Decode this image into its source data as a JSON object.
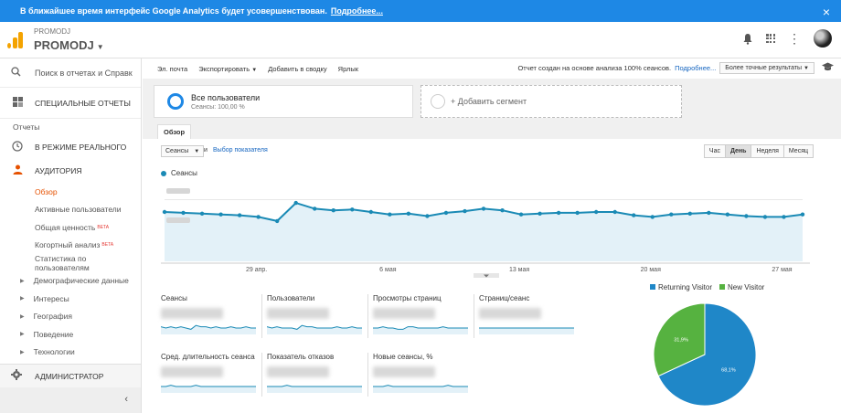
{
  "banner": {
    "text": "В ближайшее время интерфейс Google Analytics будет усовершенствован.",
    "link": "Подробнее...",
    "close": "×"
  },
  "header": {
    "account_small": "PROMODJ",
    "account_name": "PROMODJ"
  },
  "sidebar": {
    "search": "Поиск в отчетах и Справк",
    "custom_reports": "СПЕЦИАЛЬНЫЕ ОТЧЕТЫ",
    "reports_label": "Отчеты",
    "realtime": "В РЕЖИМЕ РЕАЛЬНОГО",
    "audience": "АУДИТОРИЯ",
    "audience_items": [
      {
        "label": "Обзор",
        "beta": ""
      },
      {
        "label": "Активные пользователи",
        "beta": ""
      },
      {
        "label": "Общая ценность",
        "beta": "BETA"
      },
      {
        "label": "Когортный анализ",
        "beta": "BETA"
      },
      {
        "label": "Статистика по пользователям",
        "beta": ""
      }
    ],
    "expandables": [
      "Демографические данные",
      "Интересы",
      "География",
      "Поведение",
      "Технологии"
    ],
    "admin": "АДМИНИСТРАТОР"
  },
  "toolbar": {
    "email": "Эл. почта",
    "export": "Экспортировать",
    "add_dashboard": "Добавить в сводку",
    "shortcut": "Ярлык",
    "sampling_text": "Отчет создан на основе анализа 100% сеансов.",
    "sampling_link": "Подробнее...",
    "accuracy_select": "Более точные результаты"
  },
  "segments": {
    "active_title": "Все пользователи",
    "active_sub": "Сеансы: 100,00 %",
    "add": "+ Добавить сегмент"
  },
  "tab": "Обзор",
  "controls": {
    "metric": "Сеансы",
    "and": "и",
    "pick_metric": "Выбор показателя",
    "periods": [
      {
        "label": "Час",
        "active": false
      },
      {
        "label": "День",
        "active": true
      },
      {
        "label": "Неделя",
        "active": false
      },
      {
        "label": "Месяц",
        "active": false
      }
    ]
  },
  "chart_data": [
    {
      "type": "area",
      "series": [
        {
          "name": "Сеансы",
          "color": "#1a8ab5",
          "values": [
            60,
            59,
            58,
            57,
            56,
            54,
            49,
            71,
            64,
            62,
            63,
            60,
            57,
            58,
            55,
            59,
            61,
            64,
            62,
            57,
            58,
            59,
            59,
            60,
            60,
            56,
            54,
            57,
            58,
            59,
            57,
            55,
            54,
            54,
            57
          ]
        }
      ],
      "x_tick_labels": [
        "29 апр.",
        "6 мая",
        "13 мая",
        "20 мая",
        "27 мая"
      ],
      "x_tick_positions": [
        6,
        13,
        20,
        27,
        34
      ],
      "ylim": [
        0,
        100
      ],
      "ytick_labels_blurred": true,
      "grid": true,
      "legend": "top-left"
    },
    {
      "type": "pie",
      "series": [
        {
          "name": "Returning Visitor",
          "value": 68.1,
          "color": "#1f87c8"
        },
        {
          "name": "New Visitor",
          "value": 31.9,
          "color": "#56b240"
        }
      ],
      "labels": [
        "68,1%",
        "31,9%"
      ],
      "legend": "top"
    }
  ],
  "scorecards": [
    {
      "label": "Сеансы",
      "value": "",
      "spark": [
        6,
        5,
        6,
        5,
        6,
        5,
        4,
        7,
        6,
        6,
        5,
        6,
        5,
        5,
        6,
        5,
        5,
        6,
        5,
        5
      ]
    },
    {
      "label": "Пользователи",
      "value": "",
      "spark": [
        6,
        5,
        6,
        5,
        5,
        5,
        4,
        7,
        6,
        6,
        5,
        5,
        5,
        5,
        6,
        5,
        5,
        6,
        5,
        5
      ]
    },
    {
      "label": "Просмотры страниц",
      "value": "",
      "spark": [
        5,
        5,
        6,
        5,
        5,
        4,
        4,
        6,
        6,
        5,
        5,
        5,
        5,
        5,
        6,
        5,
        5,
        5,
        5,
        5
      ]
    },
    {
      "label": "Страниц/сеанс",
      "value": "",
      "spark": [
        5,
        5,
        5,
        5,
        5,
        5,
        5,
        5,
        5,
        5,
        5,
        5,
        5,
        5,
        5,
        5,
        5,
        5,
        5,
        5
      ]
    },
    {
      "label": "Сред. длительность сеанса",
      "value": "",
      "spark": [
        5,
        5,
        6,
        5,
        5,
        5,
        5,
        6,
        5,
        5,
        5,
        5,
        5,
        5,
        5,
        5,
        5,
        5,
        5,
        5
      ]
    },
    {
      "label": "Показатель отказов",
      "value": "",
      "spark": [
        5,
        5,
        5,
        5,
        6,
        5,
        5,
        5,
        5,
        5,
        5,
        5,
        5,
        5,
        5,
        5,
        5,
        5,
        5,
        5
      ]
    },
    {
      "label": "Новые сеансы, %",
      "value": "",
      "spark": [
        5,
        5,
        5,
        6,
        5,
        5,
        5,
        5,
        5,
        5,
        5,
        5,
        5,
        5,
        5,
        6,
        5,
        5,
        5,
        5
      ]
    }
  ]
}
